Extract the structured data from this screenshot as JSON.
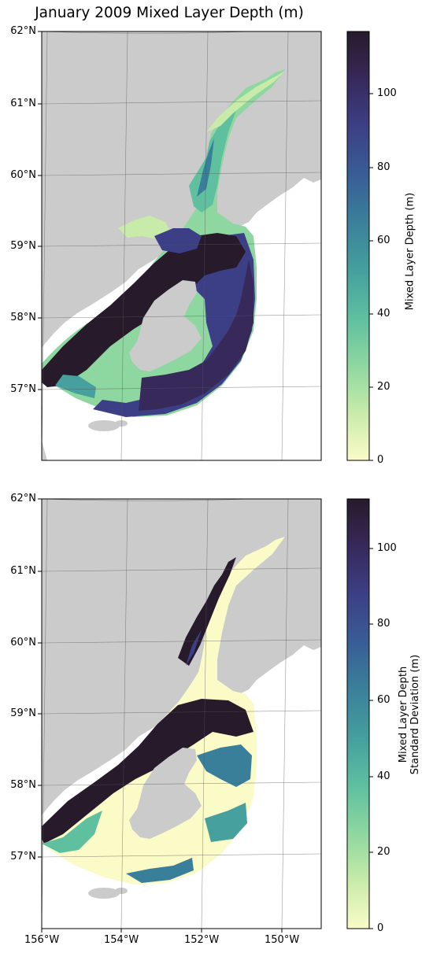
{
  "title": "January 2009 Mixed Layer Depth (m)",
  "colors": {
    "land": "#cbcbcb",
    "frame": "#000000",
    "grid": "#555555",
    "cmap": [
      "#fbfbc8",
      "#c8ebaa",
      "#8fd7a0",
      "#5fc0a0",
      "#45a09e",
      "#3a7f9a",
      "#395c96",
      "#3c3f85",
      "#37295a",
      "#271a2b"
    ]
  },
  "lat_labels": [
    "62°N",
    "61°N",
    "60°N",
    "59°N",
    "58°N",
    "57°N"
  ],
  "lon_labels": [
    "156°W",
    "154°W",
    "152°W",
    "150°W"
  ],
  "panels": [
    {
      "name": "mean",
      "colorbar": {
        "label": "Mixed Layer Depth (m)",
        "ticks": [
          "0",
          "20",
          "40",
          "60",
          "80",
          "100"
        ],
        "vmax": 117
      }
    },
    {
      "name": "std",
      "colorbar": {
        "label_line1": "Mixed Layer Depth",
        "label_line2": "Standard Deviation (m)",
        "ticks": [
          "0",
          "20",
          "40",
          "60",
          "80",
          "100"
        ],
        "vmax": 113
      }
    }
  ]
}
